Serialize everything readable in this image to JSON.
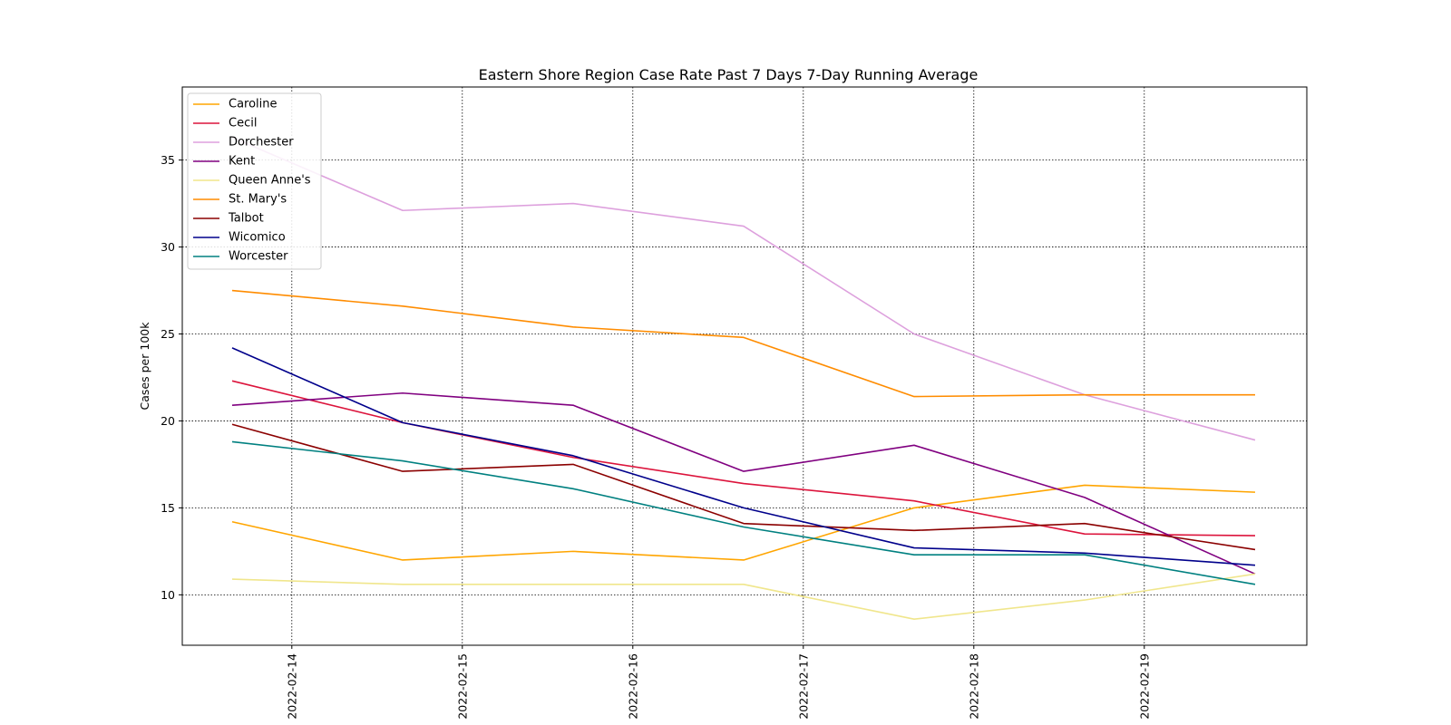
{
  "chart_data": {
    "type": "line",
    "title": "Eastern Shore Region Case Rate  Past 7 Days 7-Day Running Average",
    "xlabel": "",
    "ylabel": "Cases per 100k",
    "x": [
      "2022-02-13",
      "2022-02-14",
      "2022-02-15",
      "2022-02-16",
      "2022-02-17",
      "2022-02-18",
      "2022-02-19"
    ],
    "xticks": [
      "2022-02-14",
      "2022-02-15",
      "2022-02-16",
      "2022-02-17",
      "2022-02-18",
      "2022-02-19"
    ],
    "yticks": [
      10,
      15,
      20,
      25,
      30,
      35
    ],
    "ylim": [
      7.1,
      39.2
    ],
    "grid": true,
    "legend_position": "top-left",
    "series": [
      {
        "name": "Caroline",
        "color": "#ffa500",
        "values": [
          14.2,
          12.0,
          12.5,
          12.0,
          15.0,
          16.3,
          15.9
        ]
      },
      {
        "name": "Cecil",
        "color": "#dc143c",
        "values": [
          22.3,
          19.9,
          17.9,
          16.4,
          15.4,
          13.5,
          13.4
        ]
      },
      {
        "name": "Dorchester",
        "color": "#dda0dd",
        "values": [
          36.3,
          32.1,
          32.5,
          31.2,
          25.0,
          21.5,
          18.9
        ]
      },
      {
        "name": "Kent",
        "color": "#800080",
        "values": [
          20.9,
          21.6,
          20.9,
          17.1,
          18.6,
          15.6,
          11.2
        ]
      },
      {
        "name": "Queen Anne's",
        "color": "#f0e68c",
        "values": [
          10.9,
          10.6,
          10.6,
          10.6,
          8.6,
          9.7,
          11.2
        ]
      },
      {
        "name": "St. Mary's",
        "color": "#ff8c00",
        "values": [
          27.5,
          26.6,
          25.4,
          24.8,
          21.4,
          21.5,
          21.5
        ]
      },
      {
        "name": "Talbot",
        "color": "#8b0000",
        "values": [
          19.8,
          17.1,
          17.5,
          14.1,
          13.7,
          14.1,
          12.6
        ]
      },
      {
        "name": "Wicomico",
        "color": "#00008b",
        "values": [
          24.2,
          19.9,
          18.0,
          15.0,
          12.7,
          12.4,
          11.7
        ]
      },
      {
        "name": "Worcester",
        "color": "#008080",
        "values": [
          18.8,
          17.7,
          16.1,
          13.9,
          12.3,
          12.3,
          10.6
        ]
      }
    ]
  }
}
